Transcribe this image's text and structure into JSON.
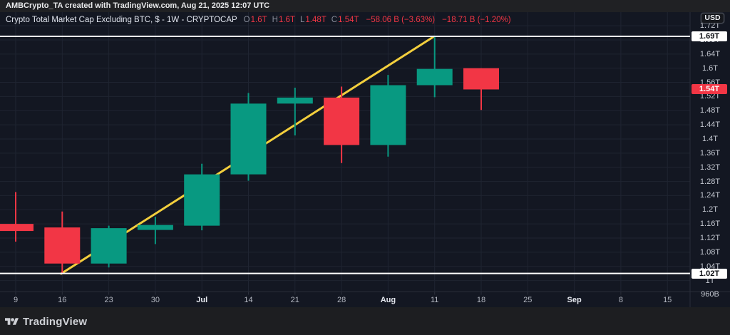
{
  "header": {
    "attribution": "AMBCrypto_TA created with TradingView.com, Aug 21, 2025 12:07 UTC"
  },
  "legend": {
    "symbol": "Crypto Total Market Cap Excluding BTC, $ - 1W - CRYPTOCAP",
    "ohlc": [
      {
        "label": "O",
        "value": "1.6T"
      },
      {
        "label": "H",
        "value": "1.6T"
      },
      {
        "label": "L",
        "value": "1.48T"
      },
      {
        "label": "C",
        "value": "1.54T"
      }
    ],
    "change_abs": "−58.06 B (−3.63%)",
    "change_pct": "−18.71 B (−1.20%)",
    "value_color": "#f23645"
  },
  "price_axis": {
    "currency_button": "USD",
    "labels": [
      {
        "text": "1.72T",
        "price": 1.72
      },
      {
        "text": "1.68T",
        "price": 1.68
      },
      {
        "text": "1.64T",
        "price": 1.64
      },
      {
        "text": "1.6T",
        "price": 1.6
      },
      {
        "text": "1.56T",
        "price": 1.56
      },
      {
        "text": "1.52T",
        "price": 1.52
      },
      {
        "text": "1.48T",
        "price": 1.48
      },
      {
        "text": "1.44T",
        "price": 1.44
      },
      {
        "text": "1.4T",
        "price": 1.4
      },
      {
        "text": "1.36T",
        "price": 1.36
      },
      {
        "text": "1.32T",
        "price": 1.32
      },
      {
        "text": "1.28T",
        "price": 1.28
      },
      {
        "text": "1.24T",
        "price": 1.24
      },
      {
        "text": "1.2T",
        "price": 1.2
      },
      {
        "text": "1.16T",
        "price": 1.16
      },
      {
        "text": "1.12T",
        "price": 1.12
      },
      {
        "text": "1.08T",
        "price": 1.08
      },
      {
        "text": "1.04T",
        "price": 1.04
      },
      {
        "text": "1T",
        "price": 1.0
      },
      {
        "text": "960B",
        "price": 0.96
      }
    ],
    "badges": [
      {
        "name": "hline-upper-badge",
        "text": "1.69T",
        "price": 1.69,
        "bg": "#ffffff",
        "fg": "#0b0d12"
      },
      {
        "name": "last-price-badge",
        "text": "1.54T",
        "price": 1.54,
        "bg": "#f23645",
        "fg": "#ffffff"
      },
      {
        "name": "hline-lower-badge",
        "text": "1.02T",
        "price": 1.02,
        "bg": "#ffffff",
        "fg": "#0b0d12"
      }
    ]
  },
  "time_axis": {
    "labels": [
      {
        "text": "9",
        "month": false
      },
      {
        "text": "16",
        "month": false
      },
      {
        "text": "23",
        "month": false
      },
      {
        "text": "30",
        "month": false
      },
      {
        "text": "Jul",
        "month": true
      },
      {
        "text": "14",
        "month": false
      },
      {
        "text": "21",
        "month": false
      },
      {
        "text": "28",
        "month": false
      },
      {
        "text": "Aug",
        "month": true
      },
      {
        "text": "11",
        "month": false
      },
      {
        "text": "18",
        "month": false
      },
      {
        "text": "25",
        "month": false
      },
      {
        "text": "Sep",
        "month": true
      },
      {
        "text": "8",
        "month": false
      },
      {
        "text": "15",
        "month": false
      }
    ]
  },
  "chart_data": {
    "type": "candlestick",
    "symbol": "CRYPTOCAP (Crypto Total Market Cap Excluding BTC, $)",
    "timeframe": "1W",
    "unit": "trillion USD",
    "ylim": [
      0.96,
      1.72
    ],
    "x_tick_labels": [
      "9",
      "16",
      "23",
      "30",
      "Jul",
      "14",
      "21",
      "28",
      "Aug",
      "11",
      "18",
      "25",
      "Sep",
      "8",
      "15"
    ],
    "candles": [
      {
        "week": "Jun 9",
        "o": 1.16,
        "h": 1.25,
        "l": 1.11,
        "c": 1.14,
        "dir": "down"
      },
      {
        "week": "Jun 16",
        "o": 1.15,
        "h": 1.195,
        "l": 1.018,
        "c": 1.048,
        "dir": "down"
      },
      {
        "week": "Jun 23",
        "o": 1.048,
        "h": 1.155,
        "l": 1.037,
        "c": 1.148,
        "dir": "up"
      },
      {
        "week": "Jun 30",
        "o": 1.143,
        "h": 1.18,
        "l": 1.103,
        "c": 1.157,
        "dir": "up"
      },
      {
        "week": "Jul 7",
        "o": 1.155,
        "h": 1.33,
        "l": 1.142,
        "c": 1.3,
        "dir": "up"
      },
      {
        "week": "Jul 14",
        "o": 1.3,
        "h": 1.53,
        "l": 1.282,
        "c": 1.5,
        "dir": "up"
      },
      {
        "week": "Jul 21",
        "o": 1.5,
        "h": 1.545,
        "l": 1.41,
        "c": 1.517,
        "dir": "up"
      },
      {
        "week": "Jul 28",
        "o": 1.517,
        "h": 1.548,
        "l": 1.332,
        "c": 1.383,
        "dir": "down"
      },
      {
        "week": "Aug 4",
        "o": 1.383,
        "h": 1.581,
        "l": 1.35,
        "c": 1.552,
        "dir": "up"
      },
      {
        "week": "Aug 11",
        "o": 1.552,
        "h": 1.69,
        "l": 1.518,
        "c": 1.598,
        "dir": "up"
      },
      {
        "week": "Aug 18",
        "o": 1.6,
        "h": 1.6,
        "l": 1.482,
        "c": 1.54,
        "dir": "down"
      }
    ],
    "annotations": {
      "trendline": {
        "from_week_index": 0.96,
        "from_price": 1.018,
        "to_week_index": 8.99,
        "to_price": 1.69,
        "color": "#f3cf3d"
      },
      "hlines": [
        {
          "price": 1.69,
          "color": "#ffffff"
        },
        {
          "price": 1.02,
          "color": "#ffffff"
        }
      ]
    },
    "colors": {
      "up": "#089981",
      "down": "#f23645"
    }
  },
  "footer": {
    "brand": "TradingView"
  }
}
